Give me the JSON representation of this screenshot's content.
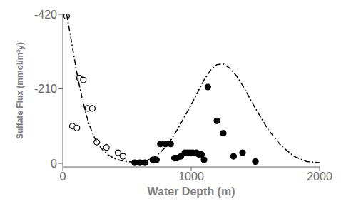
{
  "chart_data": {
    "type": "scatter",
    "xlabel": "Water Depth (m)",
    "ylabel": "Sulfate Flux (mmol/m²y)",
    "xlim": [
      0,
      2000
    ],
    "ylim": [
      10,
      -420
    ],
    "xticks": [
      0,
      1000,
      2000
    ],
    "yticks": [
      -420,
      -210,
      0
    ],
    "grid": false,
    "series": [
      {
        "type": "scatter",
        "marker": "open_circle",
        "color": "#000000",
        "x": [
          30,
          75,
          110,
          130,
          160,
          195,
          230,
          265,
          340,
          430,
          470
        ],
        "values": [
          -415,
          -105,
          -100,
          -240,
          -235,
          -155,
          -155,
          -60,
          -45,
          -30,
          -20
        ]
      },
      {
        "type": "scatter",
        "marker": "circle",
        "color": "#000000",
        "x": [
          560,
          600,
          640,
          700,
          730,
          760,
          800,
          840,
          870,
          890,
          920,
          950,
          970,
          990,
          1010,
          1040,
          1060,
          1080,
          1100,
          1130,
          1200,
          1250,
          1330,
          1400,
          1500
        ],
        "values": [
          -2,
          -2,
          -2,
          -10,
          -10,
          -55,
          -55,
          -55,
          -15,
          -15,
          -20,
          -30,
          -30,
          -30,
          -30,
          -30,
          -25,
          -25,
          -10,
          -215,
          -120,
          -85,
          -20,
          -30,
          -5
        ]
      },
      {
        "type": "line",
        "line_style": "dashdot",
        "color": "#000000",
        "x": [
          30,
          60,
          90,
          120,
          150,
          180,
          210,
          250,
          300,
          350,
          400,
          450,
          500,
          550,
          600,
          650,
          700,
          750,
          800,
          850,
          900,
          950,
          1000,
          1050,
          1100,
          1150,
          1200,
          1250,
          1300,
          1350,
          1400,
          1500,
          1600,
          1700,
          1800,
          1900,
          2000
        ],
        "values": [
          -420,
          -360,
          -295,
          -235,
          -185,
          -140,
          -105,
          -70,
          -42,
          -25,
          -14,
          -8,
          -5,
          -4,
          -5,
          -8,
          -15,
          -28,
          -46,
          -70,
          -100,
          -133,
          -165,
          -200,
          -235,
          -262,
          -278,
          -280,
          -268,
          -248,
          -220,
          -155,
          -95,
          -50,
          -20,
          -5,
          -2
        ]
      }
    ]
  }
}
